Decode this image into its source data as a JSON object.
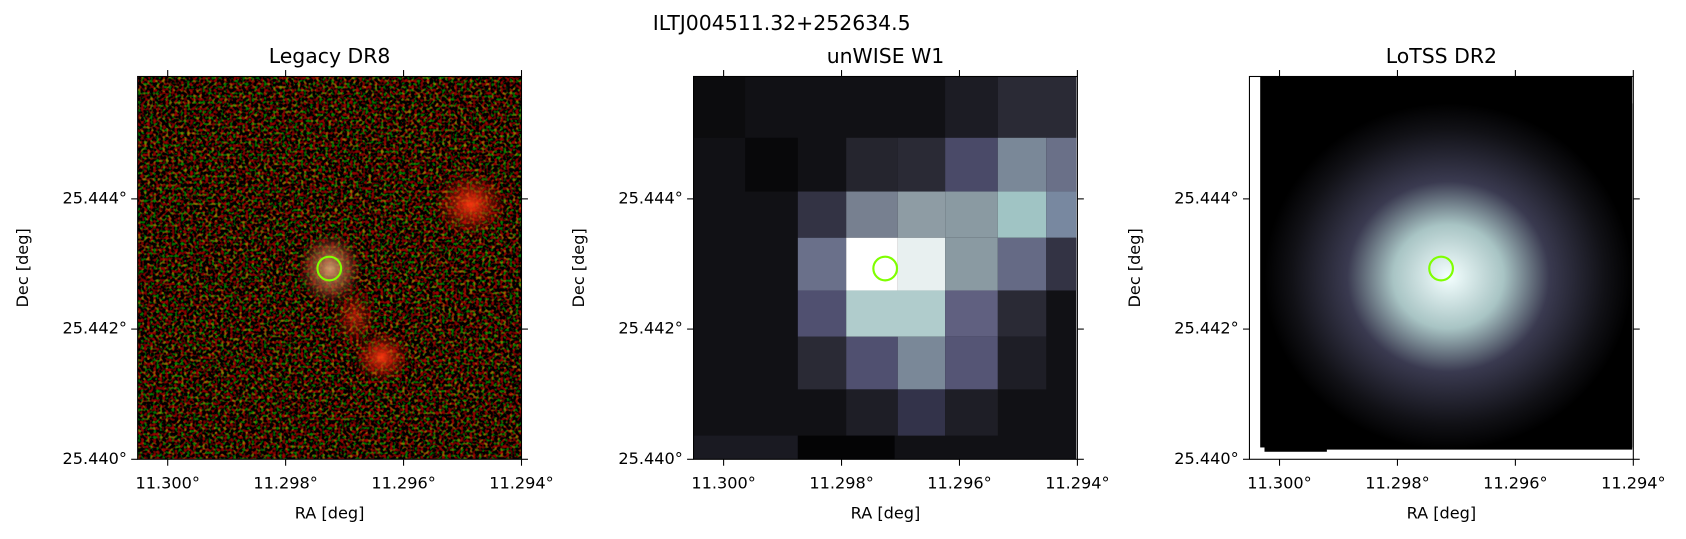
{
  "title": "ILTJ004511.32+252634.5",
  "chart_data": [
    {
      "type": "image",
      "title": "Legacy DR8",
      "xlabel": "RA [deg]",
      "ylabel": "Dec [deg]",
      "xlim": [
        11.30051,
        11.294
      ],
      "ylim": [
        25.44,
        25.44588
      ],
      "xticks": [
        {
          "value": 11.3,
          "label": "11.300°"
        },
        {
          "value": 11.298,
          "label": "11.298°"
        },
        {
          "value": 11.296,
          "label": "11.296°"
        },
        {
          "value": 11.294,
          "label": "11.294°"
        }
      ],
      "yticks": [
        {
          "value": 25.44,
          "label": "25.440°"
        },
        {
          "value": 25.442,
          "label": "25.442°"
        },
        {
          "value": 25.444,
          "label": "25.444°"
        }
      ],
      "marker": {
        "ra": 11.29726,
        "dec": 25.44293,
        "color": "#7fff00"
      }
    },
    {
      "type": "image",
      "title": "unWISE W1",
      "xlabel": "RA [deg]",
      "ylabel": "Dec [deg]",
      "xlim": [
        11.30051,
        11.294
      ],
      "ylim": [
        25.44,
        25.44588
      ],
      "xticks": [
        {
          "value": 11.3,
          "label": "11.300°"
        },
        {
          "value": 11.298,
          "label": "11.298°"
        },
        {
          "value": 11.296,
          "label": "11.296°"
        },
        {
          "value": 11.294,
          "label": "11.294°"
        }
      ],
      "yticks": [
        {
          "value": 25.44,
          "label": "25.440°"
        },
        {
          "value": 25.442,
          "label": "25.442°"
        },
        {
          "value": 25.444,
          "label": "25.444°"
        }
      ],
      "marker": {
        "ra": 11.29726,
        "dec": 25.44293,
        "color": "#7fff00"
      }
    },
    {
      "type": "image",
      "title": "LoTSS DR2",
      "xlabel": "RA [deg]",
      "ylabel": "Dec [deg]",
      "xlim": [
        11.30051,
        11.294
      ],
      "ylim": [
        25.44,
        25.44588
      ],
      "xticks": [
        {
          "value": 11.3,
          "label": "11.300°"
        },
        {
          "value": 11.298,
          "label": "11.298°"
        },
        {
          "value": 11.296,
          "label": "11.296°"
        },
        {
          "value": 11.294,
          "label": "11.294°"
        }
      ],
      "yticks": [
        {
          "value": 25.44,
          "label": "25.440°"
        },
        {
          "value": 25.442,
          "label": "25.442°"
        },
        {
          "value": 25.444,
          "label": "25.444°"
        }
      ],
      "marker": {
        "ra": 11.29726,
        "dec": 25.44293,
        "color": "#7fff00"
      }
    }
  ]
}
